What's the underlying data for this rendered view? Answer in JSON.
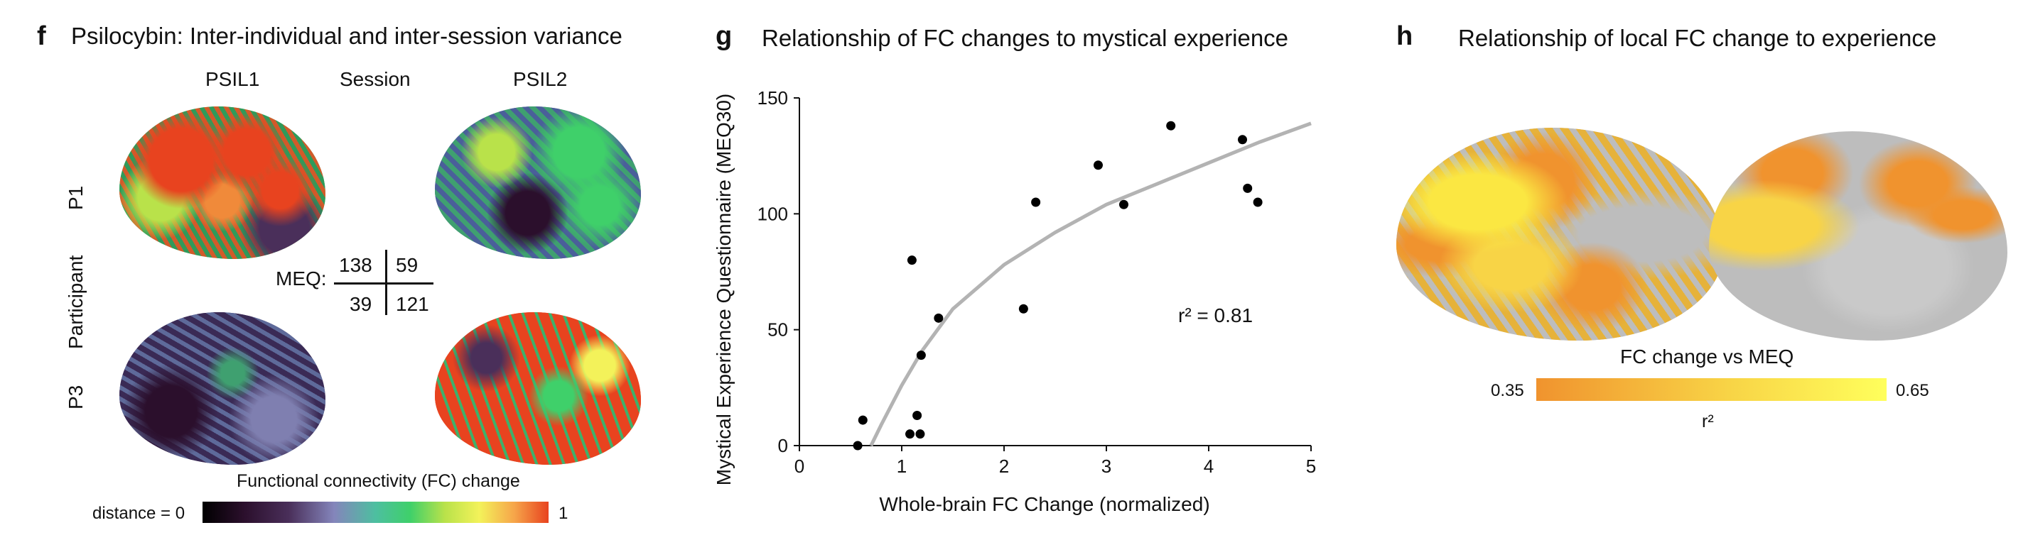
{
  "panel_f": {
    "letter": "f",
    "title": "Psilocybin: Inter-individual and inter-session variance",
    "col_psil1": "PSIL1",
    "col_session": "Session",
    "col_psil2": "PSIL2",
    "row_p1": "P1",
    "row_participant": "Participant",
    "row_p3": "P3",
    "meq_label": "MEQ:",
    "meq_values": [
      "138",
      "59",
      "39",
      "121"
    ],
    "colorbar_title": "Functional connectivity (FC) change",
    "colorbar_min": "distance = 0",
    "colorbar_max": "1"
  },
  "panel_g": {
    "letter": "g",
    "title": "Relationship of FC changes to mystical experience",
    "annotation": "r² = 0.81"
  },
  "panel_h": {
    "letter": "h",
    "title": "Relationship of local FC change to experience",
    "colorbar_title": "FC change vs MEQ",
    "colorbar_min": "0.35",
    "colorbar_max": "0.65",
    "colorbar_unit": "r²"
  },
  "chart_data": {
    "type": "scatter",
    "title": "Relationship of FC changes to mystical experience",
    "xlabel": "Whole-brain FC Change (normalized)",
    "ylabel": "Mystical Experience Questionnaire (MEQ30)",
    "xlim": [
      0,
      5
    ],
    "ylim": [
      0,
      150
    ],
    "xticks": [
      "0",
      "1",
      "2",
      "3",
      "4",
      "5"
    ],
    "yticks": [
      "0",
      "50",
      "100",
      "150"
    ],
    "points": [
      {
        "x": 0.57,
        "y": 0
      },
      {
        "x": 0.62,
        "y": 11
      },
      {
        "x": 1.08,
        "y": 5
      },
      {
        "x": 1.15,
        "y": 13
      },
      {
        "x": 1.18,
        "y": 5
      },
      {
        "x": 1.1,
        "y": 80
      },
      {
        "x": 1.19,
        "y": 39
      },
      {
        "x": 1.36,
        "y": 55
      },
      {
        "x": 2.19,
        "y": 59
      },
      {
        "x": 2.31,
        "y": 105
      },
      {
        "x": 2.92,
        "y": 121
      },
      {
        "x": 3.17,
        "y": 104
      },
      {
        "x": 3.63,
        "y": 138
      },
      {
        "x": 4.33,
        "y": 132
      },
      {
        "x": 4.38,
        "y": 111
      },
      {
        "x": 4.48,
        "y": 105
      }
    ],
    "fit_curve": {
      "description": "logarithmic fit",
      "points": [
        [
          0.7,
          0
        ],
        [
          0.8,
          9
        ],
        [
          1.0,
          26
        ],
        [
          1.2,
          41
        ],
        [
          1.5,
          59
        ],
        [
          2.0,
          78
        ],
        [
          2.5,
          92
        ],
        [
          3.0,
          104
        ],
        [
          3.5,
          113
        ],
        [
          4.0,
          122
        ],
        [
          4.5,
          131
        ],
        [
          5.0,
          139
        ]
      ]
    },
    "r_squared_label": "r² = 0.81",
    "point_color": "#000000",
    "curve_color": "#b3b3b3",
    "grid": false
  },
  "colors": {
    "fc_colormap": [
      "#000000",
      "#2b0f2c",
      "#4a2f5a",
      "#7f7fb0",
      "#5aa0a0",
      "#3fd06a",
      "#b9e24a",
      "#f3f25a",
      "#f6a64a",
      "#e8431f"
    ],
    "meq_colormap": [
      "#f0932e",
      "#fbe742",
      "#ffff59"
    ],
    "brain_gray": "#bdbdbd"
  }
}
